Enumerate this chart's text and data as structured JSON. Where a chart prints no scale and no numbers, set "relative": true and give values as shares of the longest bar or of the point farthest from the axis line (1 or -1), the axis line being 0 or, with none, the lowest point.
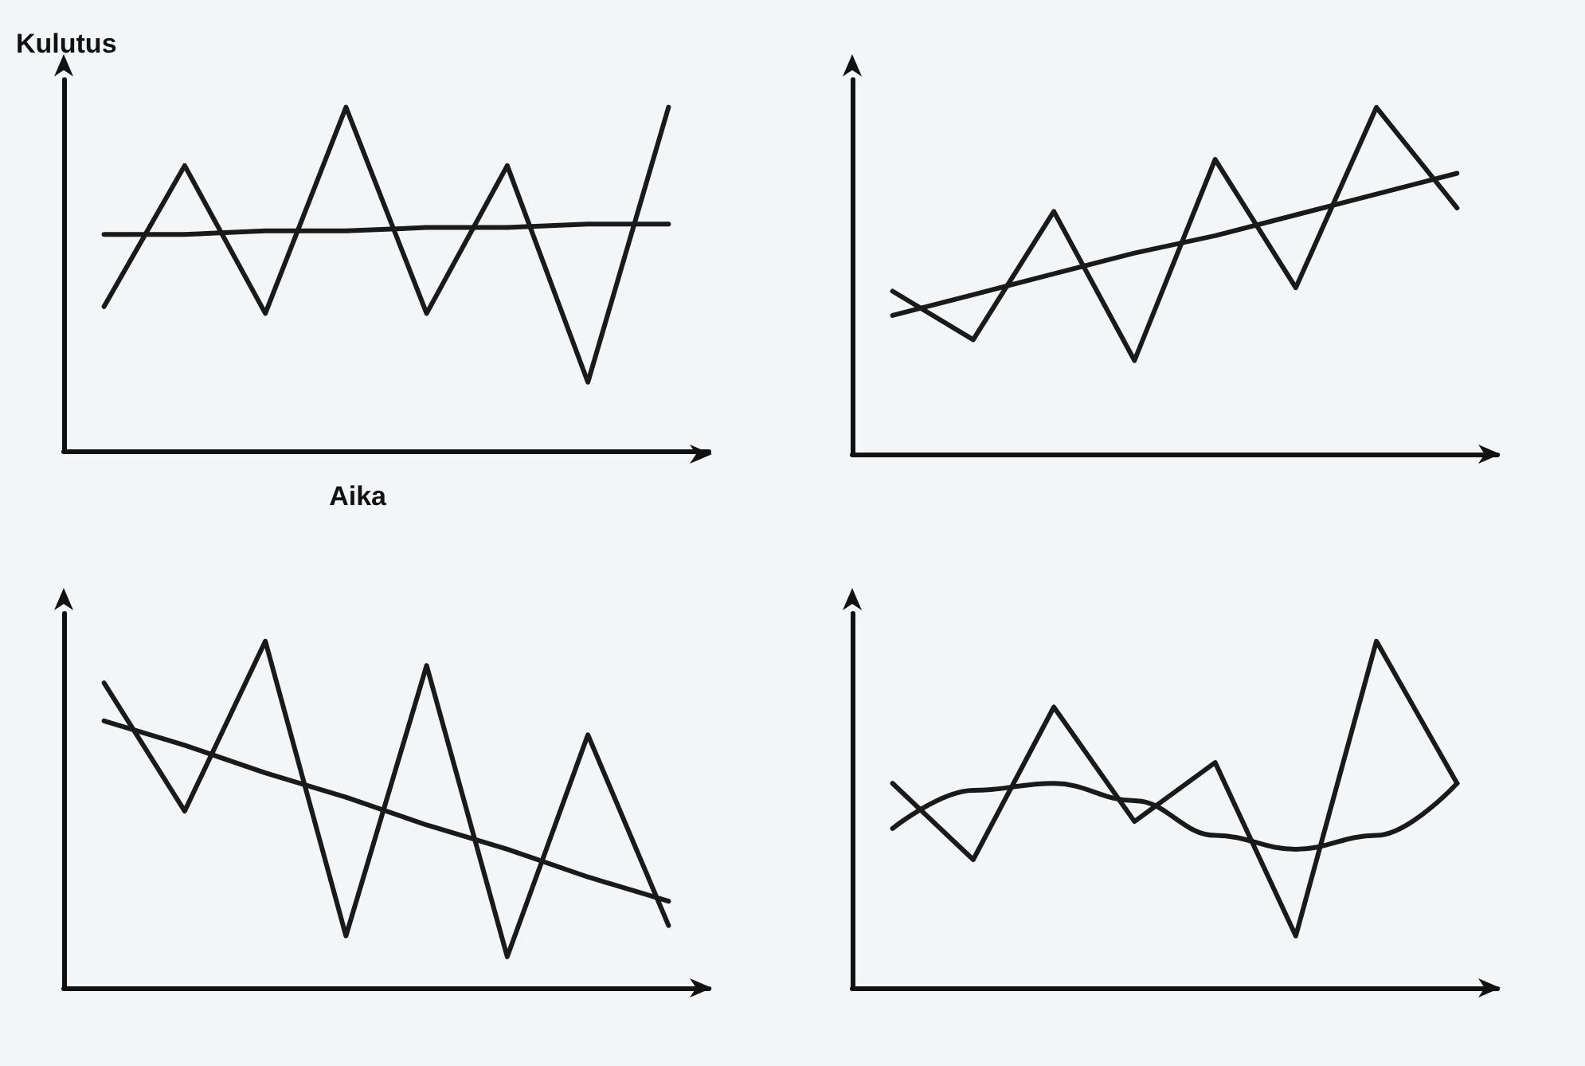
{
  "chart_data": [
    {
      "type": "line",
      "ylabel": "Kulutus",
      "xlabel": "Aika",
      "relative": true,
      "grid": false,
      "marker": "none",
      "line_style": "solid",
      "categories": [
        null,
        null,
        null,
        null,
        null,
        null,
        null,
        null
      ],
      "series": [
        {
          "color": "#1a1a1a",
          "values": [
            0.42,
            0.83,
            0.4,
            1.0,
            0.4,
            0.83,
            0.2,
            1.0
          ]
        },
        {
          "color": "#1a1a1a",
          "values": [
            0.63,
            0.63,
            0.64,
            0.64,
            0.65,
            0.65,
            0.66,
            0.66
          ]
        }
      ]
    },
    {
      "type": "line",
      "relative": true,
      "grid": false,
      "marker": "none",
      "line_style": "solid",
      "categories": [
        null,
        null,
        null,
        null,
        null,
        null,
        null,
        null
      ],
      "series": [
        {
          "color": "#1a1a1a",
          "values": [
            0.47,
            0.33,
            0.7,
            0.27,
            0.85,
            0.48,
            1.0,
            0.71
          ]
        },
        {
          "color": "#1a1a1a",
          "values": [
            0.4,
            0.46,
            0.52,
            0.58,
            0.63,
            0.69,
            0.75,
            0.81
          ]
        }
      ]
    },
    {
      "type": "line",
      "relative": true,
      "grid": false,
      "marker": "none",
      "line_style": "solid",
      "categories": [
        null,
        null,
        null,
        null,
        null,
        null,
        null,
        null
      ],
      "series": [
        {
          "color": "#1a1a1a",
          "values": [
            0.88,
            0.51,
            1.0,
            0.15,
            0.93,
            0.09,
            0.73,
            0.18
          ]
        },
        {
          "color": "#1a1a1a",
          "values": [
            0.77,
            0.7,
            0.62,
            0.55,
            0.47,
            0.4,
            0.32,
            0.25
          ]
        }
      ]
    },
    {
      "type": "line",
      "relative": true,
      "grid": false,
      "marker": "none",
      "line_style": "solid",
      "categories": [
        null,
        null,
        null,
        null,
        null,
        null,
        null,
        null
      ],
      "series": [
        {
          "color": "#1a1a1a",
          "values": [
            0.59,
            0.37,
            0.81,
            0.48,
            0.65,
            0.15,
            1.0,
            0.59
          ]
        },
        {
          "type": "line",
          "color": "#1a1a1a",
          "values": [
            0.46,
            0.57,
            0.59,
            0.54,
            0.44,
            0.4,
            0.44,
            0.59
          ]
        }
      ]
    }
  ]
}
